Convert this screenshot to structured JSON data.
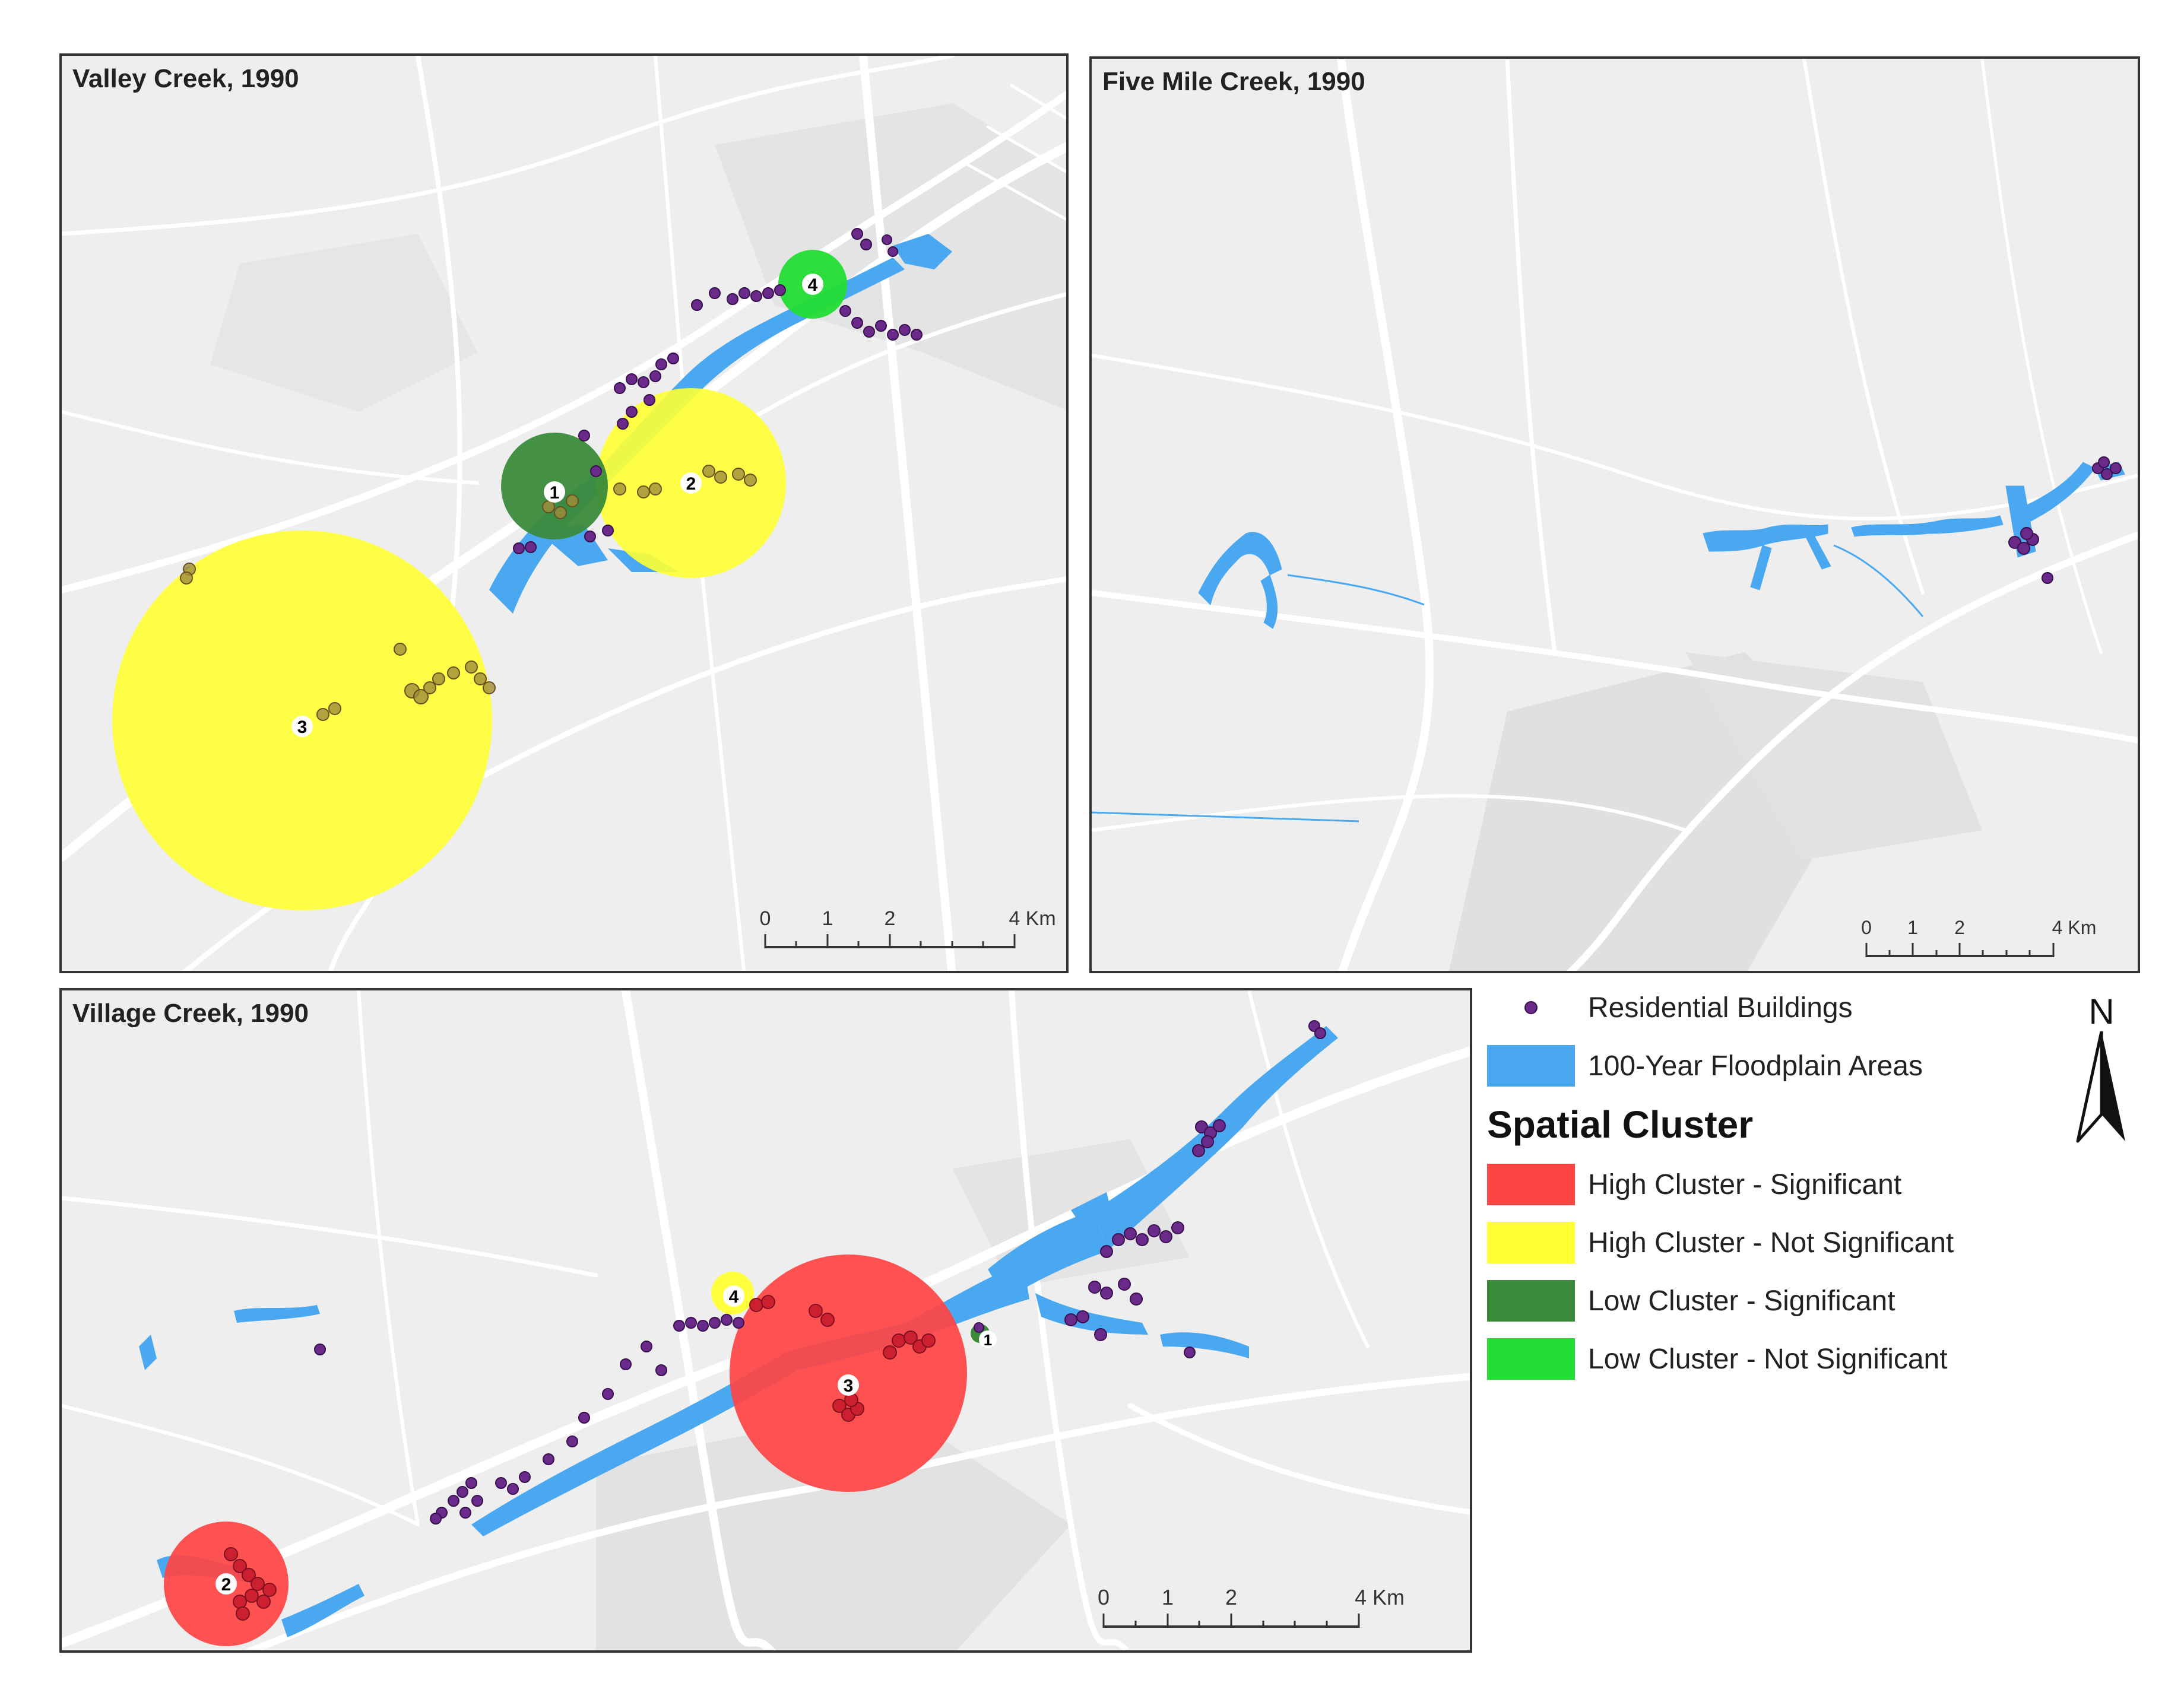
{
  "panels": {
    "valley": {
      "title": "Valley Creek, 1990"
    },
    "fivemile": {
      "title": "Five Mile Creek, 1990"
    },
    "village": {
      "title": "Village Creek, 1990"
    }
  },
  "scale": {
    "labels": [
      "0",
      "1",
      "2",
      "4 Km"
    ]
  },
  "legend": {
    "residential": "Residential Buildings",
    "floodplain": "100-Year Floodplain Areas",
    "heading": "Spatial Cluster",
    "high_sig": "High Cluster - Significant",
    "high_notsig": "High Cluster - Not Significant",
    "low_sig": "Low Cluster - Significant",
    "low_notsig": "Low Cluster - Not Significant"
  },
  "north_label": "N",
  "colors": {
    "high_sig": "#ff4444",
    "high_notsig": "#ffff33",
    "low_sig": "#3a8a3a",
    "low_notsig": "#22dd33",
    "floodplain": "#4aa8f0",
    "building": "#6a2a8a",
    "road": "#ffffff",
    "basemap": "#eeeeee"
  },
  "clusters": {
    "valley": [
      "1",
      "2",
      "3",
      "4"
    ],
    "village": [
      "1",
      "2",
      "3",
      "4"
    ]
  },
  "icons": {
    "north": "north-arrow-icon",
    "building": "building-dot-icon"
  }
}
